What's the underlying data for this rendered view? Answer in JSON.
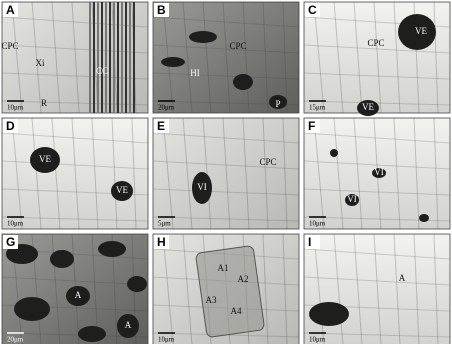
{
  "panels": [
    {
      "letter": "A",
      "labels": [
        "CPC",
        "Xi",
        "CC",
        "R"
      ],
      "scale": "10μm"
    },
    {
      "letter": "B",
      "labels": [
        "CPC",
        "HI",
        "P"
      ],
      "scale": "20μm"
    },
    {
      "letter": "C",
      "labels": [
        "CPC",
        "VE",
        "VE"
      ],
      "scale": "15μm"
    },
    {
      "letter": "D",
      "labels": [
        "VE",
        "VE"
      ],
      "scale": "10μm"
    },
    {
      "letter": "E",
      "labels": [
        "CPC",
        "VI"
      ],
      "scale": "5μm"
    },
    {
      "letter": "F",
      "labels": [
        "VI",
        "VI"
      ],
      "scale": "10μm"
    },
    {
      "letter": "G",
      "labels": [
        "A",
        "A"
      ],
      "scale": "20μm"
    },
    {
      "letter": "H",
      "labels": [
        "A1",
        "A2",
        "A3",
        "A4"
      ],
      "scale": "10μm"
    },
    {
      "letter": "I",
      "labels": [
        "A"
      ],
      "scale": "10μm"
    }
  ]
}
